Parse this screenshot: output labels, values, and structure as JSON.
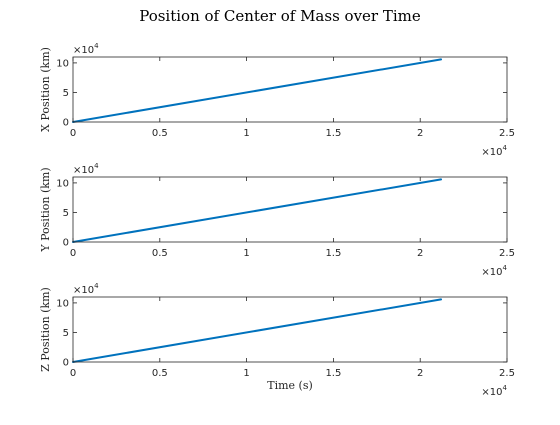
{
  "figure_title": "Position of Center of Mass over Time",
  "chart_data": [
    {
      "type": "line",
      "ylabel": "X Position (km)",
      "xlabel": "",
      "xlim": [
        0,
        25000
      ],
      "ylim": [
        0,
        110000
      ],
      "xticks": [
        0,
        5000,
        10000,
        15000,
        20000,
        25000
      ],
      "xtick_labels": [
        "0",
        "0.5",
        "1",
        "1.5",
        "2",
        "2.5"
      ],
      "yticks": [
        0,
        50000,
        100000
      ],
      "ytick_labels": [
        "0",
        "5",
        "10"
      ],
      "x_multiplier": "×10",
      "x_exponent": "4",
      "y_multiplier": "×10",
      "y_exponent": "4",
      "series": [
        {
          "x": [
            0,
            21200
          ],
          "y": [
            0,
            106000
          ],
          "color": "#0072BD"
        }
      ]
    },
    {
      "type": "line",
      "ylabel": "Y Position (km)",
      "xlabel": "",
      "xlim": [
        0,
        25000
      ],
      "ylim": [
        0,
        110000
      ],
      "xticks": [
        0,
        5000,
        10000,
        15000,
        20000,
        25000
      ],
      "xtick_labels": [
        "0",
        "0.5",
        "1",
        "1.5",
        "2",
        "2.5"
      ],
      "yticks": [
        0,
        50000,
        100000
      ],
      "ytick_labels": [
        "0",
        "5",
        "10"
      ],
      "x_multiplier": "×10",
      "x_exponent": "4",
      "y_multiplier": "×10",
      "y_exponent": "4",
      "series": [
        {
          "x": [
            0,
            21200
          ],
          "y": [
            0,
            106000
          ],
          "color": "#0072BD"
        }
      ]
    },
    {
      "type": "line",
      "ylabel": "Z Position (km)",
      "xlabel": "Time (s)",
      "xlim": [
        0,
        25000
      ],
      "ylim": [
        0,
        110000
      ],
      "xticks": [
        0,
        5000,
        10000,
        15000,
        20000,
        25000
      ],
      "xtick_labels": [
        "0",
        "0.5",
        "1",
        "1.5",
        "2",
        "2.5"
      ],
      "yticks": [
        0,
        50000,
        100000
      ],
      "ytick_labels": [
        "0",
        "5",
        "10"
      ],
      "x_multiplier": "×10",
      "x_exponent": "4",
      "y_multiplier": "×10",
      "y_exponent": "4",
      "series": [
        {
          "x": [
            0,
            21200
          ],
          "y": [
            0,
            106000
          ],
          "color": "#0072BD"
        }
      ]
    }
  ]
}
